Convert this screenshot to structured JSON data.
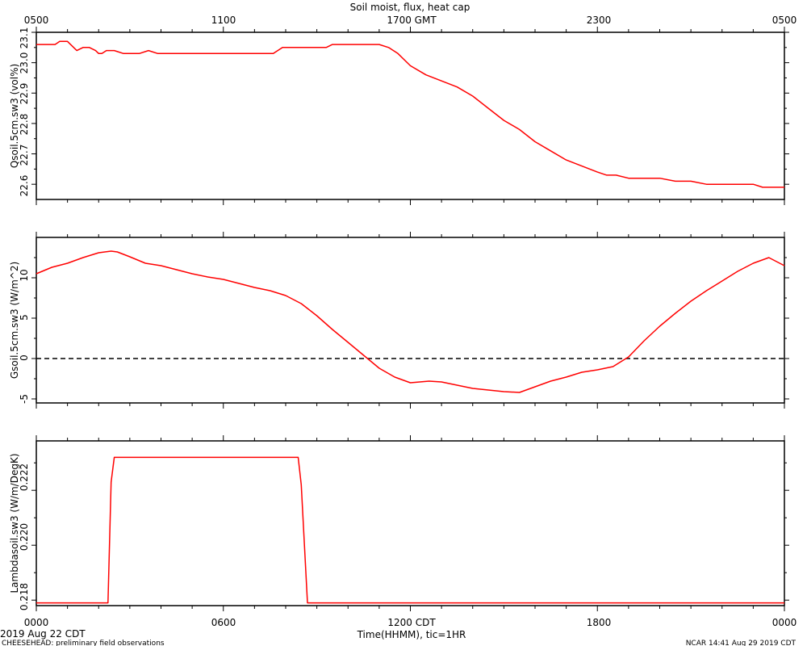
{
  "header": {
    "title": "Soil moist, flux, heat cap",
    "top_ticks": [
      "0500",
      "1100",
      "1700 GMT",
      "2300",
      "0500"
    ]
  },
  "footer": {
    "bottom_ticks": [
      "0000",
      "0600",
      "1200 CDT",
      "1800",
      "0000"
    ],
    "xlabel": "Time(HHMM), tic=1HR",
    "date_label": "2019 Aug 22 CDT",
    "project_note": "CHEESEHEAD: preliminary field observations",
    "credit": "NCAR 14:41 Aug 29 2019 CDT"
  },
  "colors": {
    "series": "#ff0000",
    "axes": "#000000"
  },
  "chart_data": [
    {
      "type": "line",
      "ylabel": "Qsoil.5cm.sw3 (vol%)",
      "ylim": [
        22.55,
        23.1
      ],
      "yticks": [
        "22.6",
        "22.7",
        "22.8",
        "22.9",
        "23.0",
        "23.1"
      ],
      "x_unit": "hours since 0000 CDT",
      "xlim": [
        0,
        24
      ],
      "series": [
        {
          "x": [
            0,
            0.6,
            0.75,
            1.0,
            1.2,
            1.3,
            1.5,
            1.7,
            1.9,
            2.0,
            2.1,
            2.25,
            2.5,
            2.8,
            3.0,
            3.3,
            3.6,
            3.9,
            4.2,
            4.5,
            5,
            6,
            7,
            7.3,
            7.6,
            7.9,
            8.5,
            9,
            9.3,
            9.5,
            10,
            10.5,
            11,
            11.3,
            11.6,
            12,
            12.5,
            13,
            13.5,
            14,
            14.5,
            15,
            15.5,
            16,
            16.5,
            17,
            17.5,
            18,
            18.3,
            18.6,
            19,
            19.5,
            20,
            20.5,
            21,
            21.5,
            22,
            22.5,
            23,
            23.3,
            24
          ],
          "y": [
            23.06,
            23.06,
            23.07,
            23.07,
            23.05,
            23.04,
            23.05,
            23.05,
            23.04,
            23.03,
            23.03,
            23.04,
            23.04,
            23.03,
            23.03,
            23.03,
            23.04,
            23.03,
            23.03,
            23.03,
            23.03,
            23.03,
            23.03,
            23.03,
            23.03,
            23.05,
            23.05,
            23.05,
            23.05,
            23.06,
            23.06,
            23.06,
            23.06,
            23.05,
            23.03,
            22.99,
            22.96,
            22.94,
            22.92,
            22.89,
            22.85,
            22.81,
            22.78,
            22.74,
            22.71,
            22.68,
            22.66,
            22.64,
            22.63,
            22.63,
            22.62,
            22.62,
            22.62,
            22.61,
            22.61,
            22.6,
            22.6,
            22.6,
            22.6,
            22.59,
            22.59
          ]
        }
      ]
    },
    {
      "type": "line",
      "ylabel": "Gsoil.5cm.sw3 (W/m^2)",
      "ylim": [
        -5.5,
        15
      ],
      "yticks": [
        "-5",
        "0",
        "5",
        "10"
      ],
      "zero_line": "dashed",
      "x_unit": "hours since 0000 CDT",
      "xlim": [
        0,
        24
      ],
      "series": [
        {
          "x": [
            0,
            0.5,
            1.0,
            1.5,
            2.0,
            2.4,
            2.6,
            3.0,
            3.5,
            4.0,
            4.5,
            5.0,
            5.5,
            6.0,
            6.5,
            7.0,
            7.5,
            8.0,
            8.5,
            9.0,
            9.5,
            10.0,
            10.5,
            11.0,
            11.5,
            12.0,
            12.3,
            12.6,
            13.0,
            13.5,
            14.0,
            14.5,
            15.0,
            15.5,
            16.0,
            16.5,
            17.0,
            17.5,
            18.0,
            18.5,
            19.0,
            19.5,
            20.0,
            20.5,
            21.0,
            21.5,
            22.0,
            22.5,
            23.0,
            23.5,
            24.0
          ],
          "y": [
            10.5,
            11.3,
            11.8,
            12.5,
            13.1,
            13.3,
            13.2,
            12.6,
            11.8,
            11.5,
            11.0,
            10.5,
            10.1,
            9.8,
            9.3,
            8.8,
            8.4,
            7.8,
            6.8,
            5.3,
            3.6,
            2.0,
            0.4,
            -1.2,
            -2.3,
            -3.0,
            -2.9,
            -2.8,
            -2.9,
            -3.3,
            -3.7,
            -3.9,
            -4.1,
            -4.2,
            -3.5,
            -2.8,
            -2.3,
            -1.7,
            -1.4,
            -1.0,
            0.2,
            2.2,
            4.0,
            5.6,
            7.1,
            8.4,
            9.6,
            10.8,
            11.8,
            12.5,
            11.5
          ]
        }
      ]
    },
    {
      "type": "line",
      "ylabel": "Lambdasoil.sw3 (W/m/DegK)",
      "ylim": [
        0.2178,
        0.2238
      ],
      "yticks": [
        "0.218",
        "0.220",
        "0.222"
      ],
      "x_unit": "hours since 0000 CDT",
      "xlim": [
        0,
        24
      ],
      "series": [
        {
          "x": [
            0,
            2.3,
            2.4,
            2.5,
            8.4,
            8.5,
            8.7,
            24
          ],
          "y": [
            0.2179,
            0.2179,
            0.2223,
            0.2232,
            0.2232,
            0.2222,
            0.2179,
            0.2179
          ]
        }
      ]
    }
  ]
}
